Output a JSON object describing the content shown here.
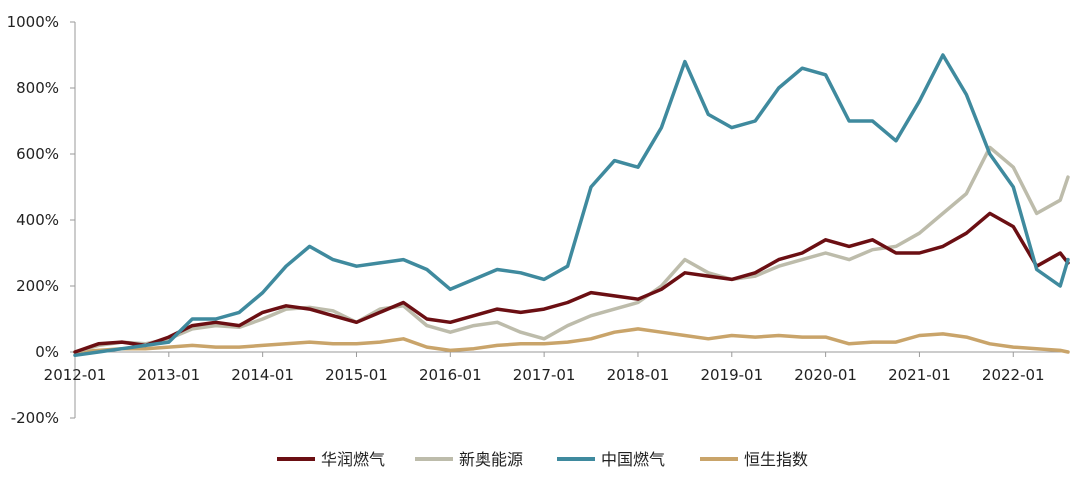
{
  "chart_data": {
    "type": "line",
    "title": "",
    "xlabel": "",
    "ylabel": "",
    "ylim": [
      -200,
      1000
    ],
    "yticks": [
      -200,
      0,
      200,
      400,
      600,
      800,
      1000
    ],
    "ytick_labels": [
      "-200%",
      "0%",
      "200%",
      "400%",
      "600%",
      "800%",
      "1000%"
    ],
    "xlim": [
      "2012-01",
      "2022-08"
    ],
    "xtick_labels": [
      "2012-01",
      "2013-01",
      "2014-01",
      "2015-01",
      "2016-01",
      "2017-01",
      "2018-01",
      "2019-01",
      "2020-01",
      "2021-01",
      "2022-01"
    ],
    "grid": false,
    "legend_position": "bottom",
    "x": [
      "2012-01",
      "2012-04",
      "2012-07",
      "2012-10",
      "2013-01",
      "2013-04",
      "2013-07",
      "2013-10",
      "2014-01",
      "2014-04",
      "2014-07",
      "2014-10",
      "2015-01",
      "2015-04",
      "2015-07",
      "2015-10",
      "2016-01",
      "2016-04",
      "2016-07",
      "2016-10",
      "2017-01",
      "2017-04",
      "2017-07",
      "2017-10",
      "2018-01",
      "2018-04",
      "2018-07",
      "2018-10",
      "2019-01",
      "2019-04",
      "2019-07",
      "2019-10",
      "2020-01",
      "2020-04",
      "2020-07",
      "2020-10",
      "2021-01",
      "2021-04",
      "2021-07",
      "2021-10",
      "2022-01",
      "2022-04",
      "2022-07",
      "2022-08"
    ],
    "series": [
      {
        "name": "华润燃气",
        "color": "#6b0f13",
        "values": [
          0,
          25,
          30,
          20,
          45,
          80,
          90,
          80,
          120,
          140,
          130,
          110,
          90,
          120,
          150,
          100,
          90,
          110,
          130,
          120,
          130,
          150,
          180,
          170,
          160,
          190,
          240,
          230,
          220,
          240,
          280,
          300,
          340,
          320,
          340,
          300,
          300,
          320,
          360,
          420,
          380,
          260,
          300,
          270
        ]
      },
      {
        "name": "新奥能源",
        "color": "#bdbcab",
        "values": [
          0,
          20,
          30,
          25,
          40,
          70,
          80,
          75,
          100,
          130,
          135,
          125,
          90,
          130,
          140,
          80,
          60,
          80,
          90,
          60,
          40,
          80,
          110,
          130,
          150,
          200,
          280,
          240,
          220,
          230,
          260,
          280,
          300,
          280,
          310,
          320,
          360,
          420,
          480,
          620,
          560,
          420,
          460,
          530
        ]
      },
      {
        "name": "中国燃气",
        "color": "#3f8a9e",
        "values": [
          -10,
          0,
          10,
          20,
          30,
          100,
          100,
          120,
          180,
          260,
          320,
          280,
          260,
          270,
          280,
          250,
          190,
          220,
          250,
          240,
          220,
          260,
          500,
          580,
          560,
          680,
          880,
          720,
          680,
          700,
          800,
          860,
          840,
          700,
          700,
          640,
          760,
          900,
          780,
          600,
          500,
          250,
          200,
          280
        ]
      },
      {
        "name": "恒生指数",
        "color": "#c9a46a",
        "values": [
          0,
          5,
          10,
          10,
          15,
          20,
          15,
          15,
          20,
          25,
          30,
          25,
          25,
          30,
          40,
          15,
          5,
          10,
          20,
          25,
          25,
          30,
          40,
          60,
          70,
          60,
          50,
          40,
          50,
          45,
          50,
          45,
          45,
          25,
          30,
          30,
          50,
          55,
          45,
          25,
          15,
          10,
          5,
          0
        ]
      }
    ]
  }
}
